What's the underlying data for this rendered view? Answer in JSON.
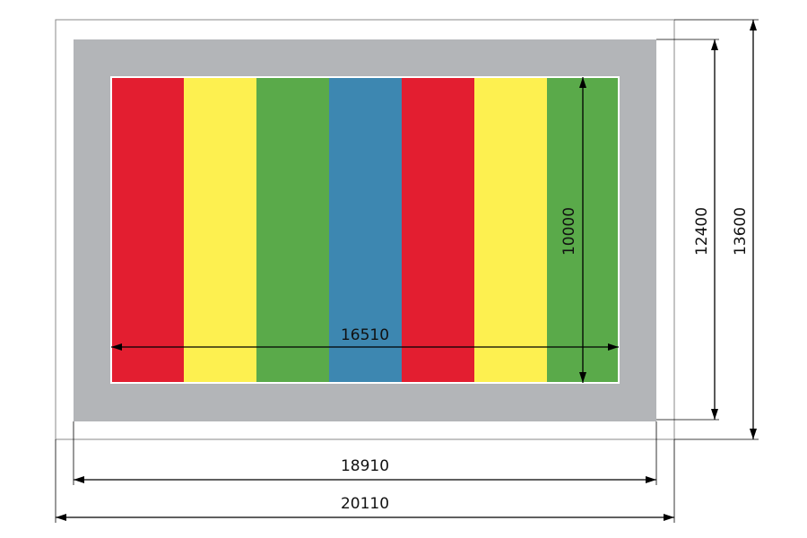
{
  "dimensions": [
    "16510",
    "10000",
    "12400",
    "13600",
    "18910",
    "20110"
  ]
}
